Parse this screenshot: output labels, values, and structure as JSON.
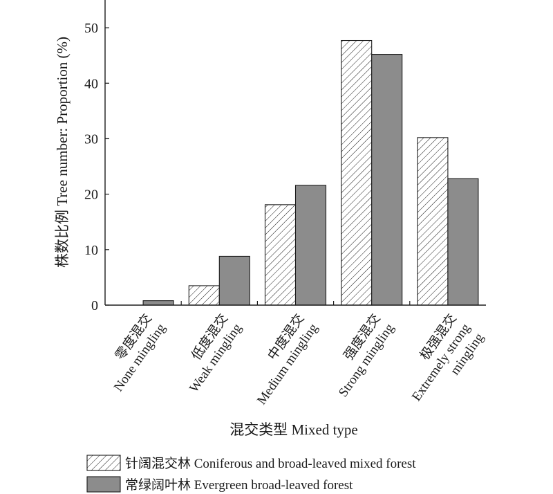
{
  "chart_data": {
    "type": "bar",
    "ylabel": "株数比例 Tree number: Proportion (%)",
    "xlabel": "混交类型 Mixed type",
    "ylim": [
      0,
      55
    ],
    "yticks": [
      0,
      10,
      20,
      30,
      40,
      50
    ],
    "grid": false,
    "legend_position": "bottom",
    "categories": [
      [
        "零度混交",
        "None mingling"
      ],
      [
        "低度混交",
        "Weak mingling"
      ],
      [
        "中度混交",
        "Medium mingling"
      ],
      [
        "强度混交",
        "Strong mingling"
      ],
      [
        "极强混交",
        "Extremely strong",
        "mingling"
      ]
    ],
    "series": [
      {
        "name": "针阔混交林 Coniferous and broad-leaved mixed forest",
        "pattern": "hatch",
        "color": "#ffffff",
        "values": [
          0,
          3.5,
          18.1,
          47.7,
          30.2
        ]
      },
      {
        "name": "常绿阔叶林 Evergreen broad-leaved forest",
        "pattern": "solid",
        "color": "#8c8c8c",
        "values": [
          0.8,
          8.8,
          21.6,
          45.2,
          22.8
        ]
      }
    ]
  }
}
